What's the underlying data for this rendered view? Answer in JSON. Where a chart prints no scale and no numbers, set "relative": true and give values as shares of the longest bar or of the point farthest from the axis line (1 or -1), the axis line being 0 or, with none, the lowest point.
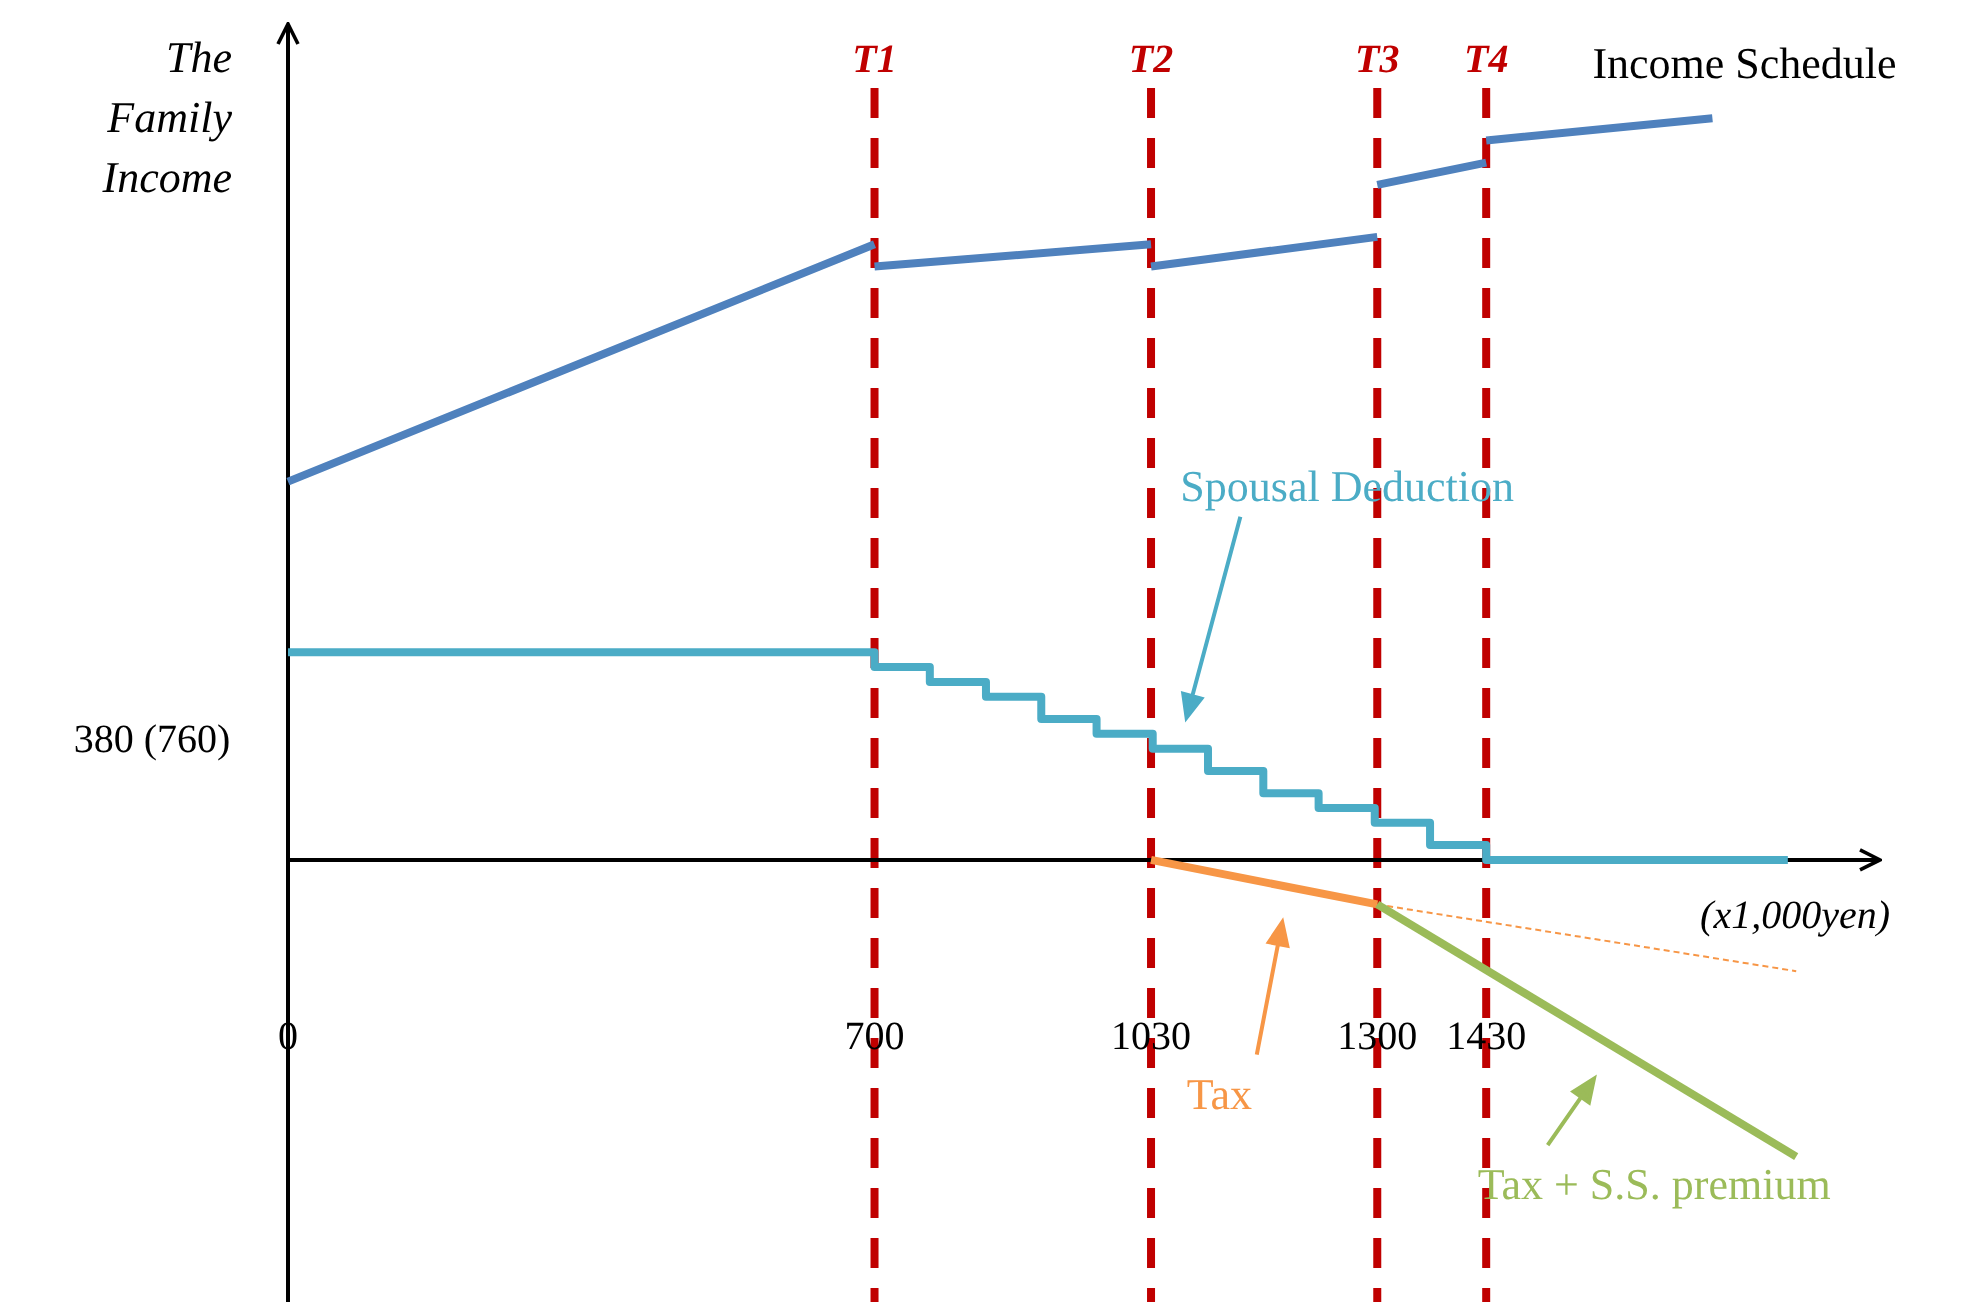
{
  "chart_data": {
    "type": "line",
    "ylabel": "The Family Income",
    "xlabel": "(x1,000yen)",
    "relative": true,
    "xlim": [
      0,
      1900
    ],
    "xticks": [
      0,
      700,
      1030,
      1300,
      1430
    ],
    "annotations": [
      {
        "text": "380 (760)",
        "x": 0,
        "y": 0.28
      }
    ],
    "series": [
      {
        "name": "Income Schedule",
        "color": "#4f81bd",
        "x": [
          0,
          700,
          null,
          700,
          1030,
          null,
          1030,
          1300,
          null,
          1300,
          1430,
          null,
          1430,
          1700
        ],
        "values": [
          0.51,
          0.83,
          null,
          0.8,
          0.83,
          null,
          0.8,
          0.84,
          null,
          0.91,
          0.94,
          null,
          0.97,
          1
        ]
      },
      {
        "name": "Spousal Deduction",
        "type": "step",
        "color": "#4bacc6",
        "x": [
          0,
          700,
          766,
          833,
          899,
          965,
          1032,
          1098,
          1164,
          1230,
          1297,
          1363,
          1430,
          1790
        ],
        "values": [
          0.28,
          0.26,
          0.24,
          0.22,
          0.19,
          0.17,
          0.15,
          0.12,
          0.09,
          0.07,
          0.05,
          0.02,
          0,
          0
        ]
      },
      {
        "name": "Tax",
        "color": "#f79646",
        "x": [
          1030,
          1300
        ],
        "values": [
          0,
          -0.06
        ]
      },
      {
        "color": "#f79646",
        "line_style": "dashed",
        "x": [
          1300,
          1800
        ],
        "values": [
          -0.06,
          -0.15
        ]
      },
      {
        "name": "Tax + S.S. premium",
        "color": "#9bbb59",
        "x": [
          1300,
          1800
        ],
        "values": [
          -0.06,
          -0.4
        ]
      }
    ],
    "ref_lines": [
      {
        "axis": "x",
        "value": 700,
        "label": "T1",
        "color": "#c00000",
        "line_style": "dashed"
      },
      {
        "axis": "x",
        "value": 1030,
        "label": "T2",
        "color": "#c00000",
        "line_style": "dashed"
      },
      {
        "axis": "x",
        "value": 1300,
        "label": "T3",
        "color": "#c00000",
        "line_style": "dashed"
      },
      {
        "axis": "x",
        "value": 1430,
        "label": "T4",
        "color": "#c00000",
        "line_style": "dashed"
      }
    ]
  }
}
